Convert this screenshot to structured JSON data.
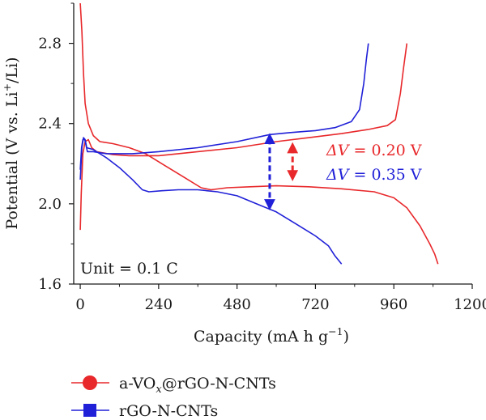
{
  "chart_data": {
    "type": "line",
    "xlabel": "Capacity (mA h g",
    "xlabel_sup": "−1",
    "xlabel_end": ")",
    "ylabel": "Potential (V vs. Li",
    "ylabel_sup": "+",
    "ylabel_end": "/Li)",
    "xlim": [
      -20,
      1200
    ],
    "ylim": [
      1.6,
      3.0
    ],
    "x_ticks": [
      0,
      240,
      480,
      720,
      960,
      1200
    ],
    "y_ticks": [
      1.6,
      2.0,
      2.4,
      2.8
    ],
    "grid": false,
    "legend_position": "bottom",
    "annotation_unit": "Unit = 0.1 C",
    "deltas": [
      {
        "label": "ΔV = 0.20 V",
        "symbol": "ΔV",
        "value_text": " = 0.20 V",
        "color": "#e8282b",
        "x": 650,
        "y_top": 2.3,
        "y_bottom": 2.12
      },
      {
        "label": "ΔV = 0.35 V",
        "symbol": "ΔV",
        "value_text": " = 0.35 V",
        "color": "#2020d8",
        "x": 580,
        "y_top": 2.345,
        "y_bottom": 1.975
      }
    ],
    "series": [
      {
        "name": "a-VOx@rGO-N-CNTs",
        "legend_prefix": "a-VO",
        "legend_sub": "x",
        "legend_suffix": "@rGO-N-CNTs",
        "marker": "circle",
        "color": "#e8282b",
        "curves": [
          {
            "role": "discharge",
            "points": [
              [
                0,
                3.0
              ],
              [
                5,
                2.86
              ],
              [
                10,
                2.65
              ],
              [
                15,
                2.5
              ],
              [
                25,
                2.4
              ],
              [
                40,
                2.34
              ],
              [
                60,
                2.31
              ],
              [
                100,
                2.3
              ],
              [
                150,
                2.28
              ],
              [
                200,
                2.25
              ],
              [
                260,
                2.19
              ],
              [
                320,
                2.13
              ],
              [
                370,
                2.08
              ],
              [
                400,
                2.07
              ],
              [
                450,
                2.08
              ],
              [
                520,
                2.085
              ],
              [
                600,
                2.09
              ],
              [
                700,
                2.085
              ],
              [
                800,
                2.075
              ],
              [
                900,
                2.06
              ],
              [
                960,
                2.03
              ],
              [
                1000,
                1.98
              ],
              [
                1040,
                1.89
              ],
              [
                1070,
                1.8
              ],
              [
                1085,
                1.75
              ],
              [
                1095,
                1.7
              ]
            ]
          },
          {
            "role": "charge",
            "points": [
              [
                0,
                1.87
              ],
              [
                3,
                2.05
              ],
              [
                8,
                2.25
              ],
              [
                15,
                2.31
              ],
              [
                25,
                2.32
              ],
              [
                35,
                2.28
              ],
              [
                50,
                2.26
              ],
              [
                100,
                2.245
              ],
              [
                150,
                2.24
              ],
              [
                240,
                2.24
              ],
              [
                360,
                2.26
              ],
              [
                480,
                2.28
              ],
              [
                600,
                2.31
              ],
              [
                700,
                2.33
              ],
              [
                800,
                2.35
              ],
              [
                880,
                2.37
              ],
              [
                940,
                2.39
              ],
              [
                965,
                2.42
              ],
              [
                980,
                2.55
              ],
              [
                990,
                2.68
              ],
              [
                1000,
                2.8
              ]
            ]
          }
        ]
      },
      {
        "name": "rGO-N-CNTs",
        "marker": "square",
        "color": "#2020d8",
        "curves": [
          {
            "role": "discharge",
            "points": [
              [
                0,
                2.12
              ],
              [
                5,
                2.28
              ],
              [
                10,
                2.33
              ],
              [
                15,
                2.32
              ],
              [
                20,
                2.28
              ],
              [
                40,
                2.27
              ],
              [
                80,
                2.23
              ],
              [
                120,
                2.18
              ],
              [
                160,
                2.12
              ],
              [
                190,
                2.07
              ],
              [
                210,
                2.06
              ],
              [
                250,
                2.065
              ],
              [
                300,
                2.07
              ],
              [
                360,
                2.07
              ],
              [
                420,
                2.06
              ],
              [
                480,
                2.04
              ],
              [
                540,
                2.0
              ],
              [
                600,
                1.96
              ],
              [
                660,
                1.9
              ],
              [
                720,
                1.84
              ],
              [
                760,
                1.79
              ],
              [
                780,
                1.74
              ],
              [
                790,
                1.72
              ],
              [
                800,
                1.7
              ]
            ]
          },
          {
            "role": "charge",
            "points": [
              [
                0,
                2.17
              ],
              [
                4,
                2.28
              ],
              [
                8,
                2.32
              ],
              [
                14,
                2.32
              ],
              [
                22,
                2.26
              ],
              [
                40,
                2.26
              ],
              [
                80,
                2.25
              ],
              [
                160,
                2.25
              ],
              [
                240,
                2.26
              ],
              [
                360,
                2.28
              ],
              [
                480,
                2.31
              ],
              [
                580,
                2.345
              ],
              [
                640,
                2.355
              ],
              [
                720,
                2.365
              ],
              [
                780,
                2.38
              ],
              [
                830,
                2.41
              ],
              [
                855,
                2.47
              ],
              [
                868,
                2.6
              ],
              [
                876,
                2.72
              ],
              [
                882,
                2.8
              ]
            ]
          }
        ]
      }
    ]
  }
}
